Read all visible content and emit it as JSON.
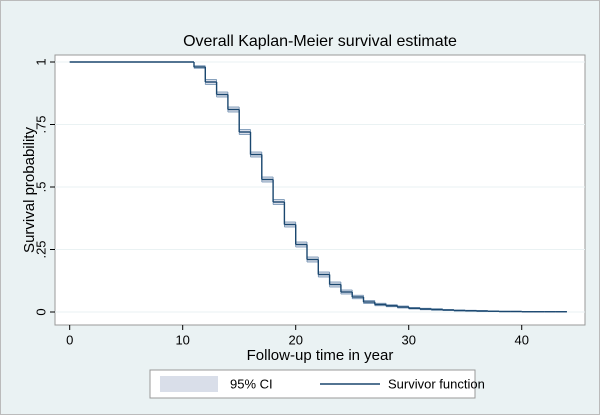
{
  "chart_data": {
    "type": "step",
    "title": "Overall Kaplan-Meier survival estimate",
    "x_label": "Follow-up time in year",
    "y_label": "Survival probability",
    "x": [
      0,
      11,
      12,
      13,
      14,
      15,
      16,
      17,
      18,
      19,
      20,
      21,
      22,
      23,
      24,
      25,
      26,
      27,
      28,
      29,
      30,
      31,
      32,
      33,
      34,
      35,
      36,
      37,
      38,
      39,
      40,
      41,
      42,
      43,
      44
    ],
    "series": [
      {
        "name": "95% CI",
        "color": "#d9dee9",
        "line_color": "#6f8fb0",
        "lower": [
          1,
          0.975,
          0.91,
          0.86,
          0.8,
          0.71,
          0.62,
          0.52,
          0.43,
          0.34,
          0.26,
          0.2,
          0.14,
          0.1,
          0.072,
          0.053,
          0.034,
          0.025,
          0.021,
          0.016,
          0.012,
          0.009,
          0.007,
          0.006,
          0.004,
          0.003,
          0.002,
          0.002,
          0.001,
          0.001,
          0.0005,
          0.0005,
          0.0005,
          0.0005,
          0.0005
        ],
        "upper": [
          1,
          0.985,
          0.93,
          0.88,
          0.82,
          0.73,
          0.64,
          0.54,
          0.45,
          0.36,
          0.28,
          0.22,
          0.16,
          0.12,
          0.088,
          0.067,
          0.046,
          0.035,
          0.029,
          0.024,
          0.018,
          0.015,
          0.013,
          0.01,
          0.008,
          0.007,
          0.006,
          0.004,
          0.003,
          0.003,
          0.002,
          0.002,
          0.002,
          0.002,
          0.002
        ]
      },
      {
        "name": "Survivor function",
        "color": "#1a476f",
        "values": [
          1,
          0.98,
          0.92,
          0.87,
          0.81,
          0.72,
          0.63,
          0.53,
          0.44,
          0.35,
          0.27,
          0.21,
          0.15,
          0.11,
          0.08,
          0.06,
          0.04,
          0.03,
          0.025,
          0.02,
          0.015,
          0.012,
          0.01,
          0.008,
          0.006,
          0.005,
          0.004,
          0.003,
          0.002,
          0.002,
          0.001,
          0.001,
          0.001,
          0.001,
          0.001
        ]
      }
    ],
    "xlim": [
      -1.3,
      45.6
    ],
    "xticks": [
      0,
      10,
      20,
      30,
      40
    ],
    "ylim": [
      -0.052,
      1.028
    ],
    "yticks": [
      0,
      {
        "value": 0.25,
        "label": ".25"
      },
      {
        "value": 0.5,
        "label": ".5"
      },
      {
        "value": 0.75,
        "label": ".75"
      },
      1
    ],
    "grid": true,
    "legend": "bottom"
  }
}
